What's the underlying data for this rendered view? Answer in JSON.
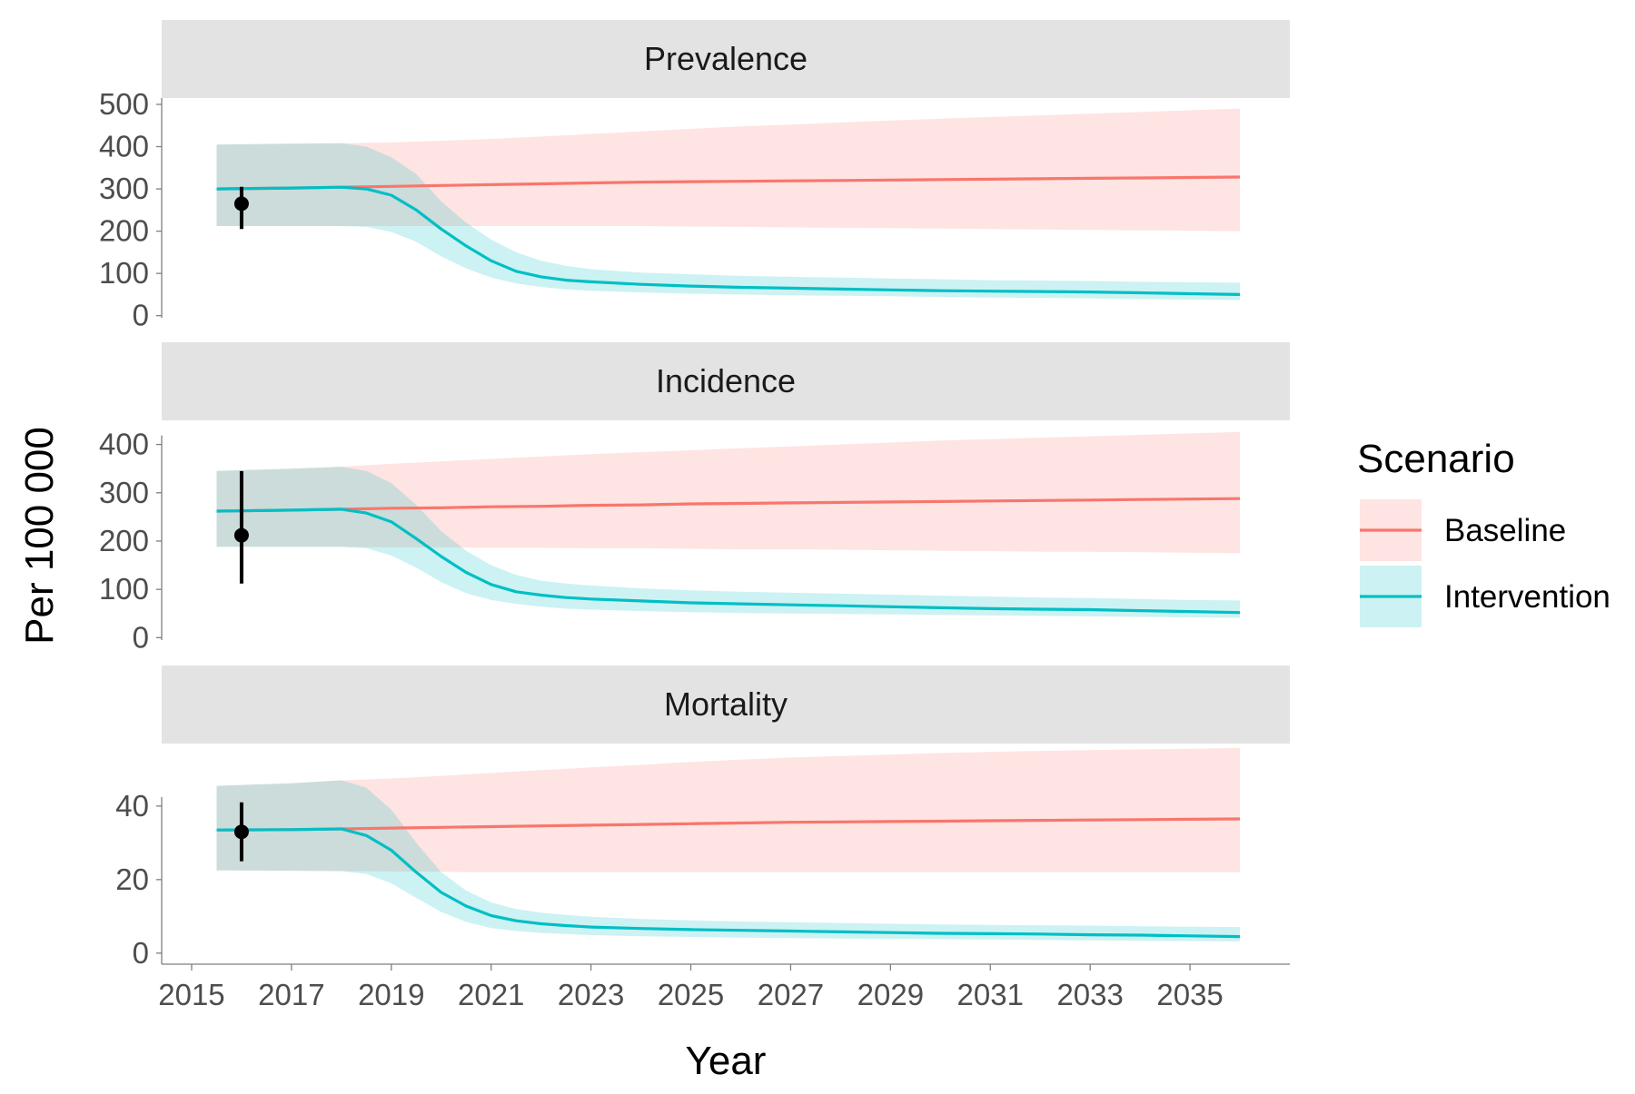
{
  "chart_data": {
    "type": "line",
    "x_label": "Year",
    "y_label": "Per 100 000",
    "x_ticks": [
      2015,
      2017,
      2019,
      2021,
      2023,
      2025,
      2027,
      2029,
      2031,
      2033,
      2035
    ],
    "xlim": [
      2014.4,
      2037.0
    ],
    "grid": false,
    "legend": {
      "title": "Scenario",
      "position": "right",
      "entries": [
        {
          "label": "Baseline",
          "line_color": "#F8766D",
          "fill_color": "#FFE0E0"
        },
        {
          "label": "Intervention",
          "line_color": "#00BFC4",
          "fill_color": "#C8F0F0"
        }
      ]
    },
    "panels": [
      {
        "title": "Prevalence",
        "ylim": [
          -5,
          515
        ],
        "y_ticks": [
          0,
          100,
          200,
          300,
          400,
          500
        ],
        "observed": {
          "x": 2016.0,
          "y": 265,
          "low": 205,
          "high": 305
        },
        "series": [
          {
            "name": "Baseline",
            "x": [
              2015.5,
              2017,
              2018,
              2019,
              2020,
              2021,
              2022,
              2023,
              2024,
              2025,
              2026,
              2027,
              2028,
              2029,
              2030,
              2031,
              2032,
              2033,
              2034,
              2035,
              2036
            ],
            "y": [
              300,
              302,
              304,
              306,
              308,
              310,
              312,
              314,
              316,
              317,
              318,
              319,
              320,
              321,
              322,
              323,
              324,
              325,
              326,
              327,
              328
            ],
            "low": [
              212,
              212,
              212,
              212,
              212,
              212,
              212,
              212,
              212,
              211,
              210,
              209,
              208,
              207,
              206,
              205,
              204,
              203,
              202,
              201,
              200
            ],
            "high": [
              405,
              407,
              408,
              410,
              414,
              418,
              424,
              430,
              436,
              442,
              448,
              452,
              457,
              462,
              466,
              470,
              474,
              478,
              482,
              486,
              490
            ]
          },
          {
            "name": "Intervention",
            "x": [
              2015.5,
              2017,
              2018,
              2018.5,
              2019,
              2019.5,
              2020,
              2020.5,
              2021,
              2021.5,
              2022,
              2022.5,
              2023,
              2024,
              2025,
              2026,
              2027,
              2028,
              2029,
              2030,
              2031,
              2032,
              2033,
              2034,
              2035,
              2036
            ],
            "y": [
              300,
              302,
              304,
              300,
              285,
              250,
              205,
              165,
              130,
              105,
              92,
              84,
              80,
              74,
              70,
              67,
              65,
              63,
              61,
              59,
              58,
              57,
              56,
              54,
              52,
              50
            ],
            "low": [
              212,
              212,
              212,
              210,
              198,
              175,
              140,
              112,
              90,
              76,
              68,
              62,
              59,
              55,
              52,
              50,
              48,
              47,
              46,
              44,
              43,
              42,
              41,
              39,
              38,
              37
            ],
            "high": [
              405,
              407,
              408,
              400,
              375,
              335,
              270,
              220,
              180,
              150,
              130,
              118,
              110,
              102,
              98,
              94,
              92,
              90,
              88,
              86,
              84,
              83,
              82,
              80,
              79,
              78
            ]
          }
        ]
      },
      {
        "title": "Incidence",
        "ylim": [
          -5,
          450
        ],
        "y_ticks": [
          0,
          100,
          200,
          300,
          400
        ],
        "observed": {
          "x": 2016.0,
          "y": 212,
          "low": 112,
          "high": 345
        },
        "series": [
          {
            "name": "Baseline",
            "x": [
              2015.5,
              2017,
              2018,
              2019,
              2020,
              2021,
              2022,
              2023,
              2024,
              2025,
              2026,
              2027,
              2028,
              2029,
              2030,
              2031,
              2032,
              2033,
              2034,
              2035,
              2036
            ],
            "y": [
              262,
              264,
              266,
              268,
              269,
              271,
              272,
              274,
              275,
              277,
              278,
              279,
              280,
              281,
              282,
              283,
              284,
              285,
              286,
              287,
              288
            ],
            "low": [
              188,
              188,
              188,
              187,
              187,
              186,
              186,
              185,
              185,
              184,
              183,
              183,
              182,
              181,
              180,
              179,
              178,
              178,
              177,
              176,
              175
            ],
            "high": [
              345,
              350,
              354,
              360,
              365,
              370,
              375,
              380,
              384,
              388,
              392,
              396,
              400,
              404,
              408,
              411,
              414,
              417,
              420,
              423,
              426
            ]
          },
          {
            "name": "Intervention",
            "x": [
              2015.5,
              2017,
              2018,
              2018.5,
              2019,
              2019.5,
              2020,
              2020.5,
              2021,
              2021.5,
              2022,
              2022.5,
              2023,
              2024,
              2025,
              2026,
              2027,
              2028,
              2029,
              2030,
              2031,
              2032,
              2033,
              2034,
              2035,
              2036
            ],
            "y": [
              262,
              264,
              266,
              258,
              240,
              205,
              168,
              135,
              110,
              95,
              88,
              83,
              80,
              76,
              72,
              70,
              68,
              66,
              64,
              62,
              60,
              59,
              58,
              56,
              54,
              52
            ],
            "low": [
              188,
              188,
              188,
              185,
              170,
              145,
              115,
              92,
              78,
              70,
              64,
              60,
              58,
              55,
              53,
              51,
              50,
              49,
              48,
              47,
              46,
              45,
              44,
              43,
              42,
              41
            ],
            "high": [
              345,
              350,
              354,
              345,
              320,
              275,
              220,
              180,
              150,
              130,
              118,
              112,
              108,
              102,
              98,
              95,
              93,
              91,
              89,
              87,
              85,
              83,
              82,
              80,
              78,
              77
            ]
          }
        ]
      },
      {
        "title": "Mortality",
        "ylim": [
          -3,
          57
        ],
        "y_ticks": [
          0,
          20,
          40
        ],
        "observed": {
          "x": 2016.0,
          "y": 33,
          "low": 25,
          "high": 41
        },
        "series": [
          {
            "name": "Baseline",
            "x": [
              2015.5,
              2017,
              2018,
              2019,
              2020,
              2021,
              2022,
              2023,
              2024,
              2025,
              2026,
              2027,
              2028,
              2029,
              2030,
              2031,
              2032,
              2033,
              2034,
              2035,
              2036
            ],
            "y": [
              33.5,
              33.6,
              33.8,
              34.0,
              34.2,
              34.4,
              34.6,
              34.8,
              35.0,
              35.2,
              35.4,
              35.6,
              35.7,
              35.8,
              35.9,
              36.0,
              36.1,
              36.2,
              36.3,
              36.4,
              36.5
            ],
            "low": [
              22.5,
              22.4,
              22.3,
              22.2,
              22.1,
              22.0,
              22.0,
              22.0,
              22.0,
              22.0,
              22.0,
              22.0,
              22.0,
              22.0,
              22.0,
              22.0,
              22.0,
              22.0,
              22.0,
              22.0,
              22.0
            ],
            "high": [
              45.5,
              46.2,
              47.0,
              47.5,
              48.2,
              49.0,
              49.8,
              50.5,
              51.2,
              52.0,
              52.6,
              53.2,
              53.6,
              54.0,
              54.4,
              54.7,
              55.0,
              55.2,
              55.4,
              55.6,
              55.8
            ]
          },
          {
            "name": "Intervention",
            "x": [
              2015.5,
              2017,
              2018,
              2018.5,
              2019,
              2019.5,
              2020,
              2020.5,
              2021,
              2021.5,
              2022,
              2022.5,
              2023,
              2024,
              2025,
              2026,
              2027,
              2028,
              2029,
              2030,
              2031,
              2032,
              2033,
              2034,
              2035,
              2036
            ],
            "y": [
              33.5,
              33.6,
              33.8,
              32.0,
              28.0,
              22.0,
              16.5,
              12.8,
              10.2,
              8.8,
              8.0,
              7.5,
              7.1,
              6.7,
              6.4,
              6.2,
              6.0,
              5.8,
              5.6,
              5.4,
              5.3,
              5.2,
              5.0,
              4.9,
              4.7,
              4.5
            ],
            "low": [
              22.5,
              22.4,
              22.3,
              21.5,
              19.0,
              15.0,
              11.2,
              8.5,
              6.8,
              6.0,
              5.5,
              5.2,
              4.9,
              4.6,
              4.4,
              4.2,
              4.1,
              4.0,
              3.9,
              3.8,
              3.7,
              3.6,
              3.5,
              3.4,
              3.3,
              3.2
            ],
            "high": [
              45.5,
              46.2,
              47.0,
              45.0,
              39.0,
              30.0,
              22.0,
              17.0,
              13.8,
              12.0,
              11.0,
              10.4,
              9.9,
              9.3,
              8.9,
              8.6,
              8.4,
              8.2,
              8.0,
              7.8,
              7.7,
              7.6,
              7.5,
              7.3,
              7.2,
              7.1
            ]
          }
        ]
      }
    ]
  }
}
